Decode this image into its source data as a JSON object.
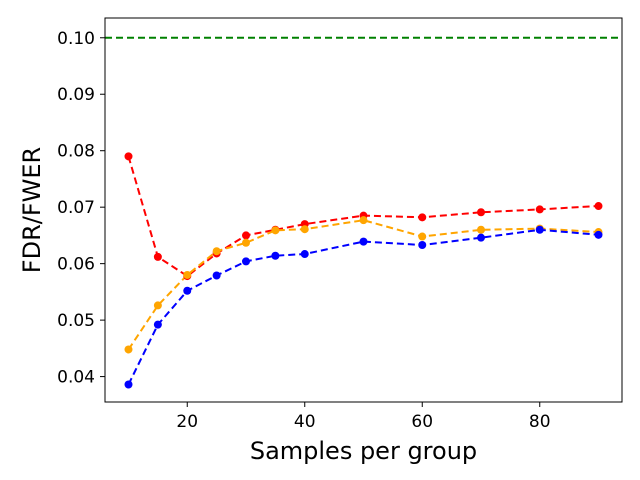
{
  "chart_data": {
    "type": "line",
    "title": "",
    "xlabel": "Samples per group",
    "ylabel": "FDR/FWER",
    "xlim": [
      6,
      94
    ],
    "ylim": [
      0.0355,
      0.1035
    ],
    "xticks": [
      20,
      40,
      60,
      80
    ],
    "xtick_labels": [
      "20",
      "40",
      "60",
      "80"
    ],
    "yticks": [
      0.04,
      0.05,
      0.06,
      0.07,
      0.08,
      0.09,
      0.1
    ],
    "ytick_labels": [
      "0.04",
      "0.05",
      "0.06",
      "0.07",
      "0.08",
      "0.09",
      "0.10"
    ],
    "grid": false,
    "reference_line": {
      "y": 0.1,
      "color": "#008000",
      "style": "dashed"
    },
    "x": [
      10,
      15,
      20,
      25,
      30,
      35,
      40,
      50,
      60,
      70,
      80,
      90
    ],
    "series": [
      {
        "color": "#ff0000",
        "values": [
          0.079,
          0.0612,
          0.0578,
          0.0618,
          0.065,
          0.066,
          0.067,
          0.0685,
          0.0682,
          0.0691,
          0.0696,
          0.0702
        ]
      },
      {
        "color": "#ffa500",
        "values": [
          0.0448,
          0.0526,
          0.058,
          0.0622,
          0.0637,
          0.0659,
          0.0661,
          0.0677,
          0.0648,
          0.066,
          0.0662,
          0.0656
        ]
      },
      {
        "color": "#0000ff",
        "values": [
          0.0386,
          0.0492,
          0.0552,
          0.0579,
          0.0604,
          0.0614,
          0.0617,
          0.0639,
          0.0633,
          0.0646,
          0.066,
          0.0651
        ]
      }
    ]
  }
}
